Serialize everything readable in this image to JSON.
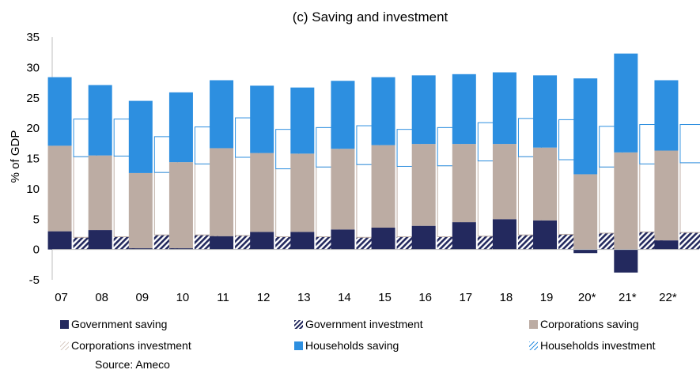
{
  "chart_data": {
    "type": "bar",
    "title": "(c) Saving and investment",
    "ylabel": "% of GDP",
    "xlabel": "",
    "ylim": [
      -5,
      35
    ],
    "yticks": [
      -5,
      0,
      5,
      10,
      15,
      20,
      25,
      30,
      35
    ],
    "categories": [
      "07",
      "08",
      "09",
      "10",
      "11",
      "12",
      "13",
      "14",
      "15",
      "16",
      "17",
      "18",
      "19",
      "20*",
      "21*",
      "22*"
    ],
    "legend_position": "bottom",
    "source": "Source: Ameco",
    "series": [
      {
        "name": "Government saving",
        "stack": "saving",
        "color": "#23295e",
        "pattern": "solid",
        "values": [
          3.0,
          3.2,
          0.2,
          0.2,
          2.2,
          2.9,
          2.9,
          3.3,
          3.6,
          3.9,
          4.5,
          5.0,
          4.8,
          -0.6,
          -3.8,
          1.5
        ]
      },
      {
        "name": "Corporations saving",
        "stack": "saving",
        "color": "#bcaca3",
        "pattern": "solid",
        "values": [
          14.1,
          12.3,
          12.4,
          14.2,
          14.5,
          13.0,
          12.9,
          13.3,
          13.6,
          13.5,
          12.9,
          12.4,
          12.0,
          12.4,
          16.0,
          14.8
        ]
      },
      {
        "name": "Households saving",
        "stack": "saving",
        "color": "#2d8fe0",
        "pattern": "solid",
        "values": [
          11.3,
          11.6,
          11.9,
          11.5,
          11.2,
          11.1,
          10.9,
          11.2,
          11.2,
          11.3,
          11.5,
          11.8,
          11.9,
          15.8,
          16.3,
          11.6
        ]
      },
      {
        "name": "Government investment",
        "stack": "investment",
        "color": "#23295e",
        "pattern": "hatch",
        "values": [
          2.0,
          2.1,
          2.4,
          2.4,
          2.3,
          2.1,
          2.1,
          2.0,
          2.1,
          2.1,
          2.2,
          2.4,
          2.5,
          2.7,
          2.9,
          2.8
        ]
      },
      {
        "name": "Corporations investment",
        "stack": "investment",
        "color": "#bcaca3",
        "pattern": "outline",
        "values": [
          13.3,
          13.3,
          10.3,
          11.7,
          12.9,
          11.2,
          11.5,
          12.0,
          11.6,
          11.7,
          12.4,
          12.9,
          12.3,
          10.9,
          11.2,
          11.5
        ]
      },
      {
        "name": "Households investment",
        "stack": "investment",
        "color": "#2d8fe0",
        "pattern": "outline",
        "values": [
          6.2,
          6.1,
          5.9,
          6.1,
          6.5,
          6.5,
          6.5,
          6.4,
          6.1,
          6.3,
          6.3,
          6.3,
          6.6,
          6.7,
          6.5,
          6.3
        ]
      }
    ]
  }
}
